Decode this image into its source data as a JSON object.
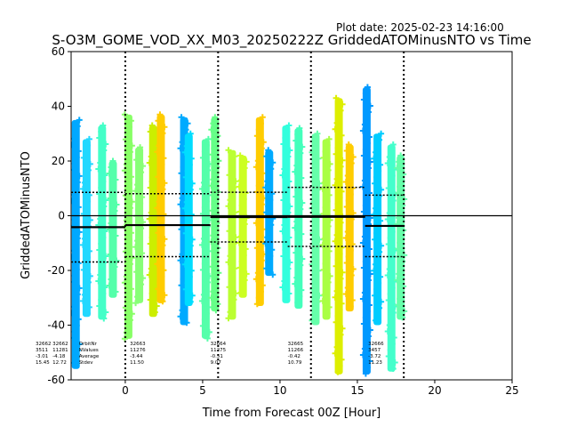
{
  "plot_date": "Plot date: 2025-02-23 14:16:00",
  "chart_data": {
    "type": "scatter",
    "title": "S-O3M_GOME_VOD_XX_M03_20250222Z GriddedATOMinusNTO vs Time",
    "xlabel": "Time from Forecast 00Z [Hour]",
    "ylabel": "GriddedATOMinusNTO",
    "xlim": [
      -3.5,
      25
    ],
    "ylim": [
      -60,
      60
    ],
    "xticks": [
      "0",
      "5",
      "10",
      "15",
      "20",
      "25"
    ],
    "yticks": [
      "-60",
      "-40",
      "-20",
      "0",
      "20",
      "40",
      "60"
    ],
    "grid": false,
    "vlines": [
      0,
      6,
      12,
      18
    ],
    "zero_line": 0,
    "swaths": [
      {
        "x": -3.2,
        "ymin": -56,
        "ymax": 35,
        "color": "#00a8ff"
      },
      {
        "x": -2.5,
        "ymin": -37,
        "ymax": 28,
        "color": "#22d8ff"
      },
      {
        "x": -1.5,
        "ymin": -38,
        "ymax": 33,
        "color": "#44ffc8"
      },
      {
        "x": -0.8,
        "ymin": -30,
        "ymax": 20,
        "color": "#55ffaa"
      },
      {
        "x": 0.2,
        "ymin": -45,
        "ymax": 37,
        "color": "#88ff66"
      },
      {
        "x": 0.9,
        "ymin": -32,
        "ymax": 25,
        "color": "#88ff77"
      },
      {
        "x": 1.8,
        "ymin": -37,
        "ymax": 33,
        "color": "#ccee00"
      },
      {
        "x": 2.3,
        "ymin": -32,
        "ymax": 37,
        "color": "#ffcc00"
      },
      {
        "x": 3.8,
        "ymin": -40,
        "ymax": 36,
        "color": "#00aaff"
      },
      {
        "x": 4.1,
        "ymin": -33,
        "ymax": 30,
        "color": "#00ddff"
      },
      {
        "x": 5.2,
        "ymin": -45,
        "ymax": 28,
        "color": "#55ffaa"
      },
      {
        "x": 5.8,
        "ymin": -35,
        "ymax": 36,
        "color": "#66ff88"
      },
      {
        "x": 6.9,
        "ymin": -38,
        "ymax": 24,
        "color": "#bbff33"
      },
      {
        "x": 7.6,
        "ymin": -30,
        "ymax": 22,
        "color": "#ccff22"
      },
      {
        "x": 8.7,
        "ymin": -33,
        "ymax": 36,
        "color": "#ffcc00"
      },
      {
        "x": 9.3,
        "ymin": -22,
        "ymax": 24,
        "color": "#00aaff"
      },
      {
        "x": 10.4,
        "ymin": -32,
        "ymax": 33,
        "color": "#33ffdd"
      },
      {
        "x": 11.2,
        "ymin": -34,
        "ymax": 32,
        "color": "#44ffbb"
      },
      {
        "x": 12.3,
        "ymin": -40,
        "ymax": 30,
        "color": "#66ffaa"
      },
      {
        "x": 13.0,
        "ymin": -38,
        "ymax": 28,
        "color": "#aaff44"
      },
      {
        "x": 13.8,
        "ymin": -58,
        "ymax": 43,
        "color": "#ddee00"
      },
      {
        "x": 14.5,
        "ymin": -35,
        "ymax": 26,
        "color": "#ffcc00"
      },
      {
        "x": 15.6,
        "ymin": -58,
        "ymax": 47,
        "color": "#0099ff"
      },
      {
        "x": 16.3,
        "ymin": -40,
        "ymax": 30,
        "color": "#00ccff"
      },
      {
        "x": 17.2,
        "ymin": -57,
        "ymax": 26,
        "color": "#44ffcc"
      },
      {
        "x": 17.8,
        "ymin": -38,
        "ymax": 22,
        "color": "#66ffaa"
      }
    ],
    "mean_lines": [
      {
        "x0": -3.5,
        "x1": 0,
        "y": -4.18
      },
      {
        "x0": 0,
        "x1": 5.5,
        "y": -3.44
      },
      {
        "x0": 5.5,
        "x1": 10.5,
        "y": -0.51
      },
      {
        "x0": 10.5,
        "x1": 15.5,
        "y": -0.42
      },
      {
        "x0": 15.5,
        "x1": 18,
        "y": -3.72
      }
    ],
    "stdev_bands": [
      {
        "x0": -3.5,
        "x1": 0,
        "upper": 8.54,
        "lower": -16.9
      },
      {
        "x0": 0,
        "x1": 5.5,
        "upper": 8.06,
        "lower": -14.94
      },
      {
        "x0": 5.5,
        "x1": 10.5,
        "upper": 8.56,
        "lower": -9.58
      },
      {
        "x0": 10.5,
        "x1": 15.5,
        "upper": 10.37,
        "lower": -11.21
      },
      {
        "x0": 15.5,
        "x1": 18,
        "upper": 7.51,
        "lower": -14.95
      }
    ],
    "annotation_labels": {
      "x": -3.0,
      "lines": [
        "OrbitNr",
        "NValues",
        "Average",
        "Stdev"
      ]
    },
    "annotations": [
      {
        "x": -5.8,
        "lines": [
          "32662",
          "3511",
          "-3.01",
          "15.45"
        ]
      },
      {
        "x": -4.7,
        "lines": [
          "32662",
          "11281",
          "-4.18",
          "12.72"
        ]
      },
      {
        "x": 0.3,
        "lines": [
          "32663",
          "11276",
          "-3.44",
          "11.50"
        ]
      },
      {
        "x": 5.5,
        "lines": [
          "32664",
          "11275",
          "-0.51",
          "9.07"
        ]
      },
      {
        "x": 10.5,
        "lines": [
          "32665",
          "11266",
          "-0.42",
          "10.79"
        ]
      },
      {
        "x": 15.7,
        "lines": [
          "32666",
          "3457",
          "-3.72",
          "11.23"
        ]
      }
    ]
  }
}
